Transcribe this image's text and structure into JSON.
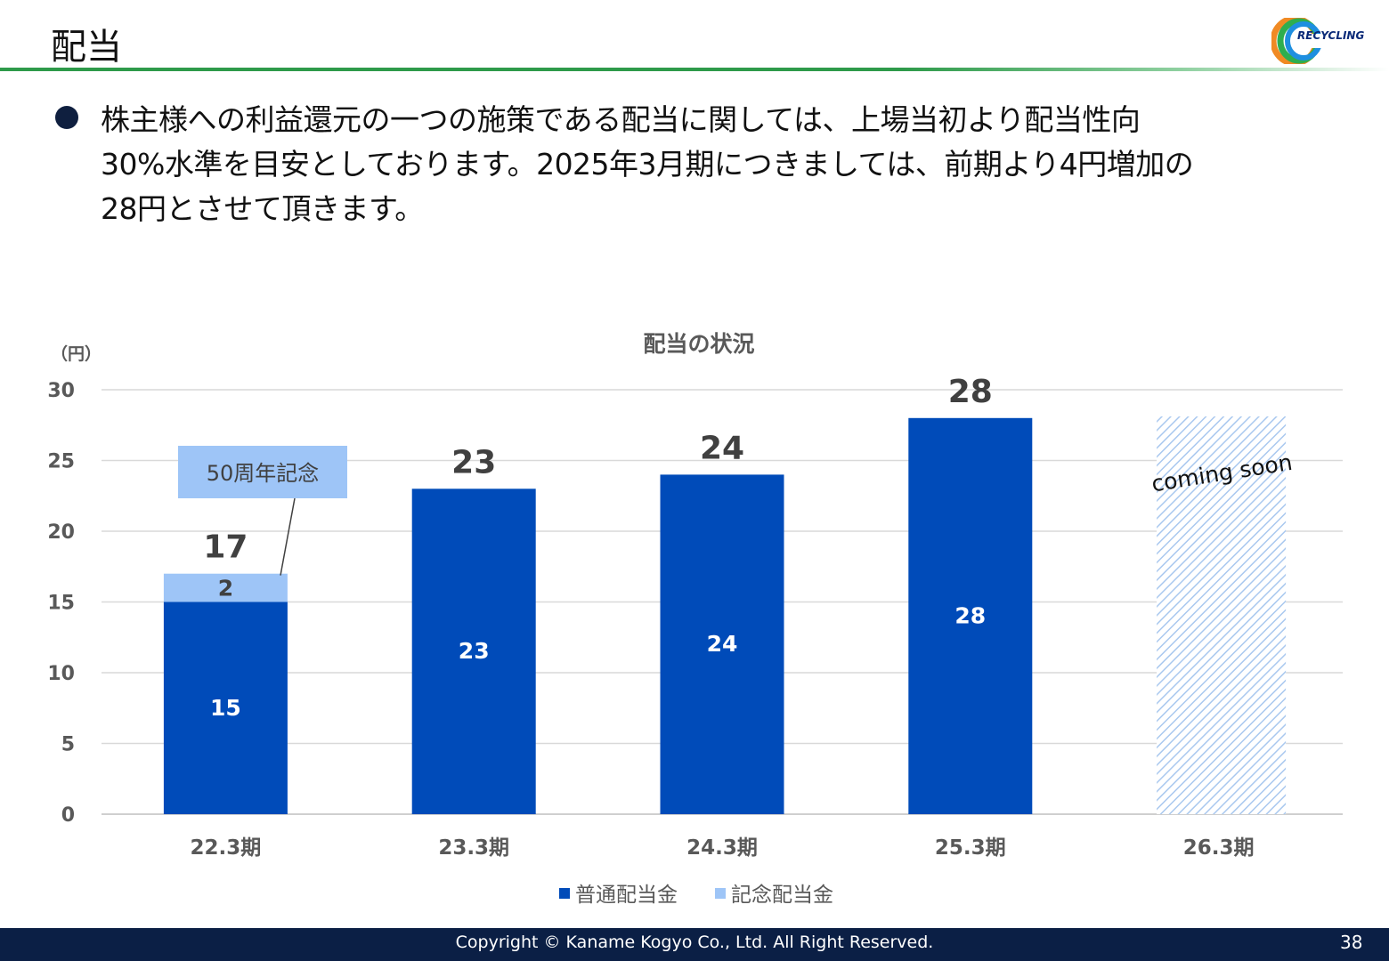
{
  "header": {
    "title": "配当"
  },
  "logo": {
    "text": "RECYCLING"
  },
  "bullet": {
    "lines": [
      "株主様への利益還元の一つの施策である配当に関しては、上場当初より配当性向",
      "30%水準を目安としております。2025年3月期につきましては、前期より4円増加の",
      "28円とさせて頂きます。"
    ]
  },
  "chart_data": {
    "type": "bar",
    "stacked": true,
    "title": "配当の状況",
    "ylabel": "（円）",
    "xlabel": "",
    "ylim": [
      0,
      30
    ],
    "yticks": [
      0,
      5,
      10,
      15,
      20,
      25,
      30
    ],
    "grid": true,
    "legend_position": "bottom",
    "categories": [
      "22.3期",
      "23.3期",
      "24.3期",
      "25.3期",
      "26.3期"
    ],
    "series": [
      {
        "name": "普通配当金",
        "color": "#004bb9",
        "values": [
          15,
          23,
          24,
          28,
          null
        ]
      },
      {
        "name": "記念配当金",
        "color": "#9ec5f7",
        "values": [
          2,
          0,
          0,
          0,
          null
        ]
      }
    ],
    "totals": [
      17,
      23,
      24,
      28,
      null
    ],
    "annotations": [
      {
        "text": "50周年記念",
        "category": "22.3期",
        "series": "記念配当金"
      },
      {
        "text": "coming soon",
        "category": "26.3期"
      }
    ]
  },
  "footer": {
    "copyright": "Copyright © Kaname Kogyo Co., Ltd. All Right Reserved.",
    "page_number": "38"
  }
}
